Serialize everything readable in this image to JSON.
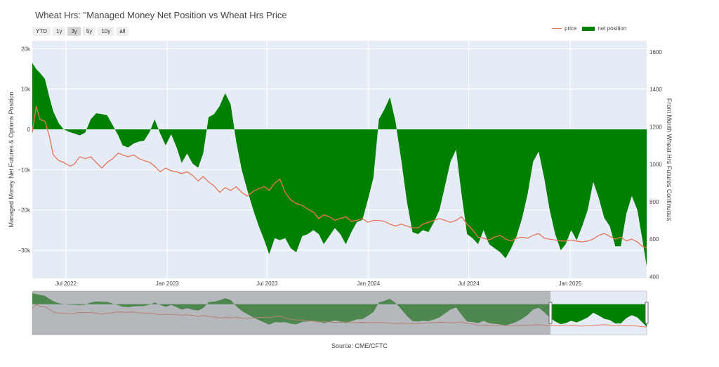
{
  "chart_data": {
    "type": "area",
    "title": "Wheat Hrs: \"Managed Money Net Position vs Wheat Hrs Price",
    "ylabel": "Managed Money Net Futures & Options Position",
    "y2label": "Front Month Wheat Hrs Futures Continuous",
    "ylim": [
      -37000,
      22000
    ],
    "y2lim": [
      390,
      1660
    ],
    "y_ticks": [
      20000,
      10000,
      0,
      -10000,
      -20000,
      -30000
    ],
    "y_tick_labels": [
      "20k",
      "10k",
      "0",
      "−10k",
      "−20k",
      "−30k"
    ],
    "y2_ticks": [
      400,
      600,
      800,
      1000,
      1200,
      1400,
      1600
    ],
    "x_range": [
      "2022-05-01",
      "2025-05-20"
    ],
    "x_ticks": [
      "2022-07-01",
      "2023-01-01",
      "2023-07-01",
      "2024-01-01",
      "2024-07-01",
      "2025-01-01"
    ],
    "x_tick_labels": [
      "Jul 2022",
      "Jan 2023",
      "Jul 2023",
      "Jan 2024",
      "Jul 2024",
      "Jan 2025"
    ],
    "grid": true,
    "legend_position": "top-right",
    "series": [
      {
        "name": "net position",
        "kind": "area",
        "color": "#008000",
        "x": [
          "2022-05-01",
          "2022-05-08",
          "2022-05-15",
          "2022-05-24",
          "2022-06-01",
          "2022-06-08",
          "2022-06-18",
          "2022-06-27",
          "2022-07-08",
          "2022-07-16",
          "2022-07-26",
          "2022-08-05",
          "2022-08-15",
          "2022-08-25",
          "2022-09-04",
          "2022-09-14",
          "2022-09-24",
          "2022-10-04",
          "2022-10-12",
          "2022-10-22",
          "2022-11-01",
          "2022-11-11",
          "2022-11-20",
          "2022-11-30",
          "2022-12-09",
          "2022-12-19",
          "2022-12-29",
          "2023-01-08",
          "2023-01-18",
          "2023-01-27",
          "2023-02-06",
          "2023-02-16",
          "2023-02-26",
          "2023-03-07",
          "2023-03-17",
          "2023-03-27",
          "2023-04-06",
          "2023-04-16",
          "2023-04-26",
          "2023-05-06",
          "2023-05-16",
          "2023-05-26",
          "2023-06-06",
          "2023-06-16",
          "2023-06-26",
          "2023-07-05",
          "2023-07-15",
          "2023-07-24",
          "2023-08-03",
          "2023-08-13",
          "2023-08-23",
          "2023-09-03",
          "2023-09-13",
          "2023-09-23",
          "2023-10-03",
          "2023-10-12",
          "2023-10-22",
          "2023-11-01",
          "2023-11-11",
          "2023-11-21",
          "2023-12-01",
          "2023-12-11",
          "2023-12-21",
          "2023-12-31",
          "2024-01-10",
          "2024-01-20",
          "2024-01-30",
          "2024-02-09",
          "2024-02-19",
          "2024-03-01",
          "2024-03-11",
          "2024-03-21",
          "2024-03-31",
          "2024-04-09",
          "2024-04-19",
          "2024-04-29",
          "2024-05-09",
          "2024-05-19",
          "2024-05-29",
          "2024-06-08",
          "2024-06-18",
          "2024-06-28",
          "2024-07-08",
          "2024-07-18",
          "2024-07-28",
          "2024-08-07",
          "2024-08-17",
          "2024-08-27",
          "2024-09-06",
          "2024-09-16",
          "2024-09-26",
          "2024-10-06",
          "2024-10-16",
          "2024-10-26",
          "2024-11-05",
          "2024-11-15",
          "2024-11-25",
          "2024-12-05",
          "2024-12-15",
          "2024-12-24",
          "2025-01-03",
          "2025-01-13",
          "2025-01-23",
          "2025-02-02",
          "2025-02-12",
          "2025-02-22",
          "2025-03-04",
          "2025-03-14",
          "2025-03-24",
          "2025-04-03",
          "2025-04-13",
          "2025-04-23",
          "2025-05-03",
          "2025-05-13",
          "2025-05-20"
        ],
        "values": [
          16500,
          15000,
          14000,
          12500,
          8000,
          4500,
          1500,
          0,
          -700,
          -1000,
          -1500,
          -800,
          2500,
          4000,
          3800,
          3500,
          1000,
          -1500,
          -4000,
          -4500,
          -3500,
          -3000,
          -2800,
          -600,
          2500,
          -1000,
          -4000,
          -1200,
          -4500,
          -8300,
          -6000,
          -8500,
          -9500,
          -6000,
          3000,
          3800,
          5800,
          9000,
          6200,
          -3000,
          -10000,
          -15000,
          -20000,
          -24000,
          -27500,
          -31000,
          -27000,
          -27500,
          -27000,
          -29500,
          -30500,
          -26500,
          -26000,
          -25000,
          -26000,
          -28500,
          -26500,
          -24500,
          -26000,
          -28500,
          -25500,
          -23000,
          -22500,
          -17500,
          -12000,
          2500,
          5000,
          8000,
          2000,
          -8000,
          -18000,
          -25500,
          -26000,
          -25000,
          -25500,
          -23000,
          -20000,
          -14000,
          -8000,
          -5000,
          -16000,
          -26000,
          -27000,
          -28500,
          -25000,
          -28500,
          -29500,
          -30500,
          -32000,
          -29500,
          -26500,
          -22000,
          -16000,
          -8000,
          -5500,
          -12000,
          -20000,
          -26000,
          -30000,
          -28500,
          -25000,
          -27500,
          -24000,
          -20000,
          -13000,
          -17000,
          -22000,
          -24000,
          -29000,
          -29000,
          -21000,
          -16500,
          -20000,
          -28000,
          -34000
        ]
      },
      {
        "name": "price",
        "kind": "line",
        "axis": "right",
        "color": "#e8735a",
        "x": [
          "2022-05-01",
          "2022-05-08",
          "2022-05-15",
          "2022-05-24",
          "2022-06-01",
          "2022-06-08",
          "2022-06-18",
          "2022-06-27",
          "2022-07-08",
          "2022-07-16",
          "2022-07-26",
          "2022-08-05",
          "2022-08-15",
          "2022-08-25",
          "2022-09-04",
          "2022-09-14",
          "2022-09-24",
          "2022-10-04",
          "2022-10-12",
          "2022-10-22",
          "2022-11-01",
          "2022-11-11",
          "2022-11-20",
          "2022-11-30",
          "2022-12-09",
          "2022-12-19",
          "2022-12-29",
          "2023-01-08",
          "2023-01-18",
          "2023-01-27",
          "2023-02-06",
          "2023-02-16",
          "2023-02-26",
          "2023-03-07",
          "2023-03-17",
          "2023-03-27",
          "2023-04-06",
          "2023-04-16",
          "2023-04-26",
          "2023-05-06",
          "2023-05-16",
          "2023-05-26",
          "2023-06-06",
          "2023-06-16",
          "2023-06-26",
          "2023-07-05",
          "2023-07-15",
          "2023-07-24",
          "2023-08-03",
          "2023-08-13",
          "2023-08-23",
          "2023-09-03",
          "2023-09-13",
          "2023-09-23",
          "2023-10-03",
          "2023-10-12",
          "2023-10-22",
          "2023-11-01",
          "2023-11-11",
          "2023-11-21",
          "2023-12-01",
          "2023-12-11",
          "2023-12-21",
          "2023-12-31",
          "2024-01-10",
          "2024-01-20",
          "2024-01-30",
          "2024-02-09",
          "2024-02-19",
          "2024-03-01",
          "2024-03-11",
          "2024-03-21",
          "2024-03-31",
          "2024-04-09",
          "2024-04-19",
          "2024-04-29",
          "2024-05-09",
          "2024-05-19",
          "2024-05-29",
          "2024-06-08",
          "2024-06-18",
          "2024-06-28",
          "2024-07-08",
          "2024-07-18",
          "2024-07-28",
          "2024-08-07",
          "2024-08-17",
          "2024-08-27",
          "2024-09-06",
          "2024-09-16",
          "2024-09-26",
          "2024-10-06",
          "2024-10-16",
          "2024-10-26",
          "2024-11-05",
          "2024-11-15",
          "2024-11-25",
          "2024-12-05",
          "2024-12-15",
          "2024-12-24",
          "2025-01-03",
          "2025-01-13",
          "2025-01-23",
          "2025-02-02",
          "2025-02-12",
          "2025-02-22",
          "2025-03-04",
          "2025-03-14",
          "2025-03-24",
          "2025-04-03",
          "2025-04-13",
          "2025-04-23",
          "2025-05-03",
          "2025-05-13",
          "2025-05-20"
        ],
        "values": [
          1170,
          1310,
          1240,
          1230,
          1150,
          1050,
          1020,
          1010,
          990,
          1000,
          1040,
          1030,
          1040,
          1010,
          980,
          1010,
          1030,
          1060,
          1050,
          1040,
          1050,
          1030,
          1020,
          1010,
          990,
          960,
          980,
          965,
          960,
          950,
          960,
          940,
          910,
          935,
          905,
          885,
          850,
          875,
          860,
          880,
          850,
          830,
          855,
          870,
          880,
          860,
          900,
          920,
          850,
          810,
          790,
          780,
          760,
          745,
          710,
          730,
          720,
          700,
          710,
          720,
          695,
          700,
          710,
          690,
          700,
          700,
          695,
          680,
          670,
          680,
          670,
          660,
          660,
          680,
          690,
          700,
          710,
          700,
          690,
          700,
          720,
          680,
          650,
          610,
          605,
          595,
          610,
          620,
          600,
          590,
          605,
          610,
          605,
          620,
          630,
          605,
          600,
          595,
          590,
          590,
          595,
          590,
          585,
          590,
          600,
          620,
          630,
          615,
          600,
          610,
          590,
          600,
          585,
          560,
          555
        ]
      }
    ]
  },
  "controls": {
    "range_buttons": [
      "YTD",
      "1y",
      "3y",
      "5y",
      "10y",
      "all"
    ],
    "active_range": "3y"
  },
  "legend": {
    "price_label": "price",
    "net_label": "net position"
  },
  "footer": {
    "source": "Source: CME/CFTC"
  },
  "colors": {
    "plot_bg": "#e5ecf6",
    "net": "#008000",
    "price": "#e8735a",
    "navigator_shade": "#8c8c8c"
  }
}
